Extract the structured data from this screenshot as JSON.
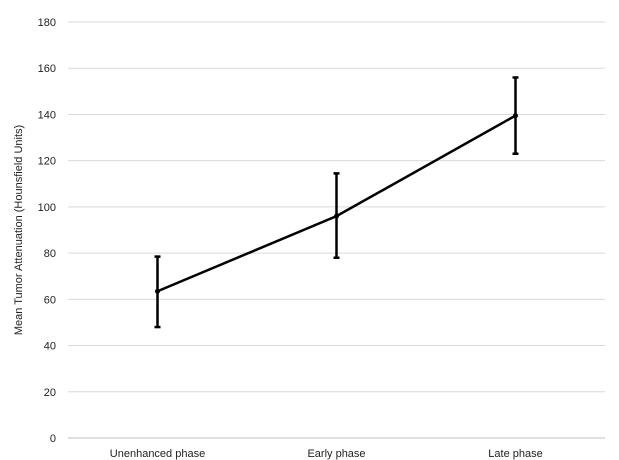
{
  "chart_data": {
    "type": "line",
    "title": "",
    "xlabel": "",
    "ylabel": "Mean Tumor Attenuation (Hounsfield Units)",
    "categories": [
      "Unenhanced phase",
      "Early phase",
      "Late phase"
    ],
    "ylim": [
      0,
      180
    ],
    "yticks": [
      0,
      20,
      40,
      60,
      80,
      100,
      120,
      140,
      160,
      180
    ],
    "grid": true,
    "legend": "none",
    "series": [
      {
        "values": [
          63.5,
          96,
          139.5
        ],
        "error_low": [
          48,
          78,
          123
        ],
        "error_high": [
          78.5,
          114.5,
          156
        ],
        "color": "#000000"
      }
    ]
  }
}
